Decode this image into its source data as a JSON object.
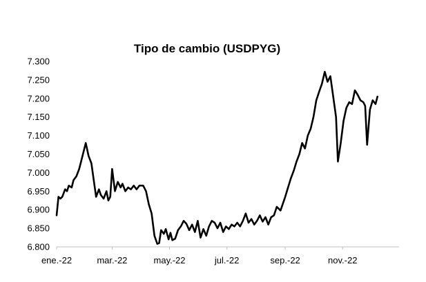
{
  "chart_data": {
    "type": "line",
    "title": "Tipo de cambio (USDPYG)",
    "xlabel": "",
    "ylabel": "",
    "ylim": [
      6800,
      7300
    ],
    "y_ticks": [
      {
        "value": 6800,
        "label": "6.800"
      },
      {
        "value": 6850,
        "label": "6.850"
      },
      {
        "value": 6900,
        "label": "6.900"
      },
      {
        "value": 6950,
        "label": "6.950"
      },
      {
        "value": 7000,
        "label": "7.000"
      },
      {
        "value": 7050,
        "label": "7.050"
      },
      {
        "value": 7100,
        "label": "7.100"
      },
      {
        "value": 7150,
        "label": "7.150"
      },
      {
        "value": 7200,
        "label": "7.200"
      },
      {
        "value": 7250,
        "label": "7.250"
      },
      {
        "value": 7300,
        "label": "7.300"
      }
    ],
    "xlim": [
      "2022-01-01",
      "2022-12-31"
    ],
    "x_ticks": [
      {
        "date": "2022-01-01",
        "label": "ene.-22"
      },
      {
        "date": "2022-03-01",
        "label": "mar.-22"
      },
      {
        "date": "2022-05-01",
        "label": "may.-22"
      },
      {
        "date": "2022-07-01",
        "label": "jul.-22"
      },
      {
        "date": "2022-09-01",
        "label": "sep.-22"
      },
      {
        "date": "2022-11-01",
        "label": "nov.-22"
      }
    ],
    "grid": false,
    "legend": "none",
    "series": [
      {
        "color": "#000000",
        "points": [
          [
            "2022-01-01",
            6885
          ],
          [
            "2022-01-03",
            6935
          ],
          [
            "2022-01-05",
            6930
          ],
          [
            "2022-01-07",
            6935
          ],
          [
            "2022-01-10",
            6955
          ],
          [
            "2022-01-12",
            6950
          ],
          [
            "2022-01-14",
            6965
          ],
          [
            "2022-01-17",
            6960
          ],
          [
            "2022-01-19",
            6980
          ],
          [
            "2022-01-22",
            6990
          ],
          [
            "2022-01-25",
            7010
          ],
          [
            "2022-01-28",
            7040
          ],
          [
            "2022-02-01",
            7080
          ],
          [
            "2022-02-04",
            7045
          ],
          [
            "2022-02-07",
            7025
          ],
          [
            "2022-02-10",
            6970
          ],
          [
            "2022-02-12",
            6935
          ],
          [
            "2022-02-15",
            6955
          ],
          [
            "2022-02-17",
            6940
          ],
          [
            "2022-02-20",
            6930
          ],
          [
            "2022-02-23",
            6950
          ],
          [
            "2022-02-25",
            6925
          ],
          [
            "2022-02-27",
            6935
          ],
          [
            "2022-03-01",
            7010
          ],
          [
            "2022-03-04",
            6950
          ],
          [
            "2022-03-07",
            6975
          ],
          [
            "2022-03-10",
            6960
          ],
          [
            "2022-03-12",
            6970
          ],
          [
            "2022-03-15",
            6950
          ],
          [
            "2022-03-18",
            6960
          ],
          [
            "2022-03-21",
            6955
          ],
          [
            "2022-03-24",
            6965
          ],
          [
            "2022-03-27",
            6955
          ],
          [
            "2022-03-30",
            6965
          ],
          [
            "2022-04-03",
            6965
          ],
          [
            "2022-04-06",
            6950
          ],
          [
            "2022-04-09",
            6915
          ],
          [
            "2022-04-12",
            6890
          ],
          [
            "2022-04-15",
            6830
          ],
          [
            "2022-04-18",
            6808
          ],
          [
            "2022-04-20",
            6810
          ],
          [
            "2022-04-22",
            6845
          ],
          [
            "2022-04-25",
            6835
          ],
          [
            "2022-04-27",
            6848
          ],
          [
            "2022-04-30",
            6820
          ],
          [
            "2022-05-02",
            6838
          ],
          [
            "2022-05-04",
            6818
          ],
          [
            "2022-05-07",
            6822
          ],
          [
            "2022-05-10",
            6845
          ],
          [
            "2022-05-13",
            6855
          ],
          [
            "2022-05-16",
            6870
          ],
          [
            "2022-05-19",
            6862
          ],
          [
            "2022-05-22",
            6845
          ],
          [
            "2022-05-25",
            6860
          ],
          [
            "2022-05-28",
            6840
          ],
          [
            "2022-05-31",
            6870
          ],
          [
            "2022-06-03",
            6825
          ],
          [
            "2022-06-06",
            6848
          ],
          [
            "2022-06-09",
            6830
          ],
          [
            "2022-06-12",
            6855
          ],
          [
            "2022-06-15",
            6870
          ],
          [
            "2022-06-18",
            6865
          ],
          [
            "2022-06-21",
            6850
          ],
          [
            "2022-06-24",
            6865
          ],
          [
            "2022-06-27",
            6840
          ],
          [
            "2022-06-30",
            6855
          ],
          [
            "2022-07-03",
            6848
          ],
          [
            "2022-07-06",
            6860
          ],
          [
            "2022-07-09",
            6855
          ],
          [
            "2022-07-12",
            6865
          ],
          [
            "2022-07-15",
            6855
          ],
          [
            "2022-07-18",
            6870
          ],
          [
            "2022-07-21",
            6890
          ],
          [
            "2022-07-24",
            6865
          ],
          [
            "2022-07-27",
            6875
          ],
          [
            "2022-07-30",
            6860
          ],
          [
            "2022-08-02",
            6870
          ],
          [
            "2022-08-05",
            6885
          ],
          [
            "2022-08-08",
            6868
          ],
          [
            "2022-08-11",
            6880
          ],
          [
            "2022-08-14",
            6860
          ],
          [
            "2022-08-17",
            6880
          ],
          [
            "2022-08-20",
            6885
          ],
          [
            "2022-08-23",
            6908
          ],
          [
            "2022-08-27",
            6898
          ],
          [
            "2022-09-01",
            6935
          ],
          [
            "2022-09-04",
            6960
          ],
          [
            "2022-09-07",
            6985
          ],
          [
            "2022-09-10",
            7005
          ],
          [
            "2022-09-13",
            7030
          ],
          [
            "2022-09-16",
            7050
          ],
          [
            "2022-09-19",
            7080
          ],
          [
            "2022-09-22",
            7065
          ],
          [
            "2022-09-25",
            7100
          ],
          [
            "2022-09-28",
            7118
          ],
          [
            "2022-10-01",
            7150
          ],
          [
            "2022-10-04",
            7195
          ],
          [
            "2022-10-07",
            7218
          ],
          [
            "2022-10-10",
            7240
          ],
          [
            "2022-10-13",
            7272
          ],
          [
            "2022-10-16",
            7245
          ],
          [
            "2022-10-19",
            7260
          ],
          [
            "2022-10-22",
            7205
          ],
          [
            "2022-10-25",
            7150
          ],
          [
            "2022-10-27",
            7030
          ],
          [
            "2022-10-30",
            7080
          ],
          [
            "2022-11-02",
            7140
          ],
          [
            "2022-11-05",
            7175
          ],
          [
            "2022-11-08",
            7190
          ],
          [
            "2022-11-11",
            7185
          ],
          [
            "2022-11-14",
            7222
          ],
          [
            "2022-11-17",
            7210
          ],
          [
            "2022-11-20",
            7195
          ],
          [
            "2022-11-23",
            7190
          ],
          [
            "2022-11-25",
            7180
          ],
          [
            "2022-11-27",
            7075
          ],
          [
            "2022-11-30",
            7170
          ],
          [
            "2022-12-03",
            7195
          ],
          [
            "2022-12-06",
            7185
          ],
          [
            "2022-12-08",
            7205
          ]
        ]
      }
    ]
  }
}
